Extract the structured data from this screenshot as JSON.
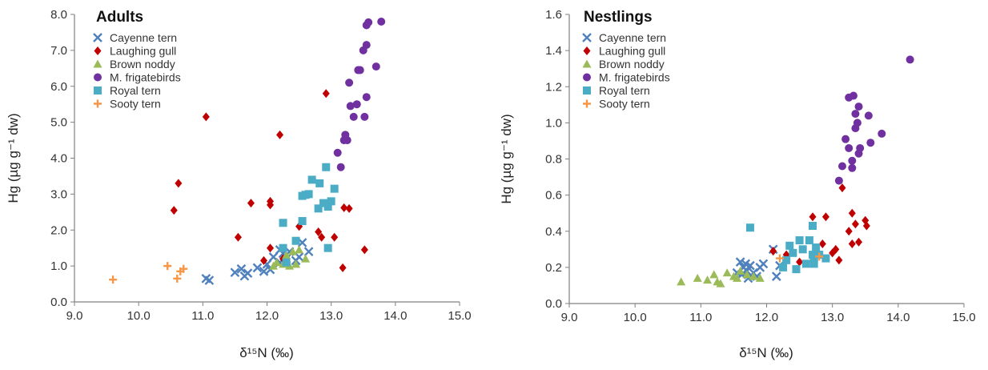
{
  "chart_data": [
    {
      "type": "scatter",
      "title": "Adults",
      "xlabel": "δ¹⁵N (‰)",
      "ylabel": "Hg (µg g⁻¹ dw)",
      "xlim": [
        9.0,
        15.0
      ],
      "ylim": [
        0.0,
        8.0
      ],
      "x_ticks": [
        "9.0",
        "10.0",
        "11.0",
        "12.0",
        "13.0",
        "14.0",
        "15.0"
      ],
      "y_ticks": [
        "0.0",
        "1.0",
        "2.0",
        "3.0",
        "4.0",
        "5.0",
        "6.0",
        "7.0",
        "8.0"
      ],
      "legend_position": "top-left",
      "grid": false,
      "series": [
        {
          "name": "Cayenne tern",
          "marker": "x",
          "color": "#4F81BD",
          "points": [
            [
              11.05,
              0.65
            ],
            [
              11.1,
              0.6
            ],
            [
              11.5,
              0.82
            ],
            [
              11.6,
              0.92
            ],
            [
              11.65,
              0.72
            ],
            [
              11.7,
              0.8
            ],
            [
              11.85,
              0.95
            ],
            [
              11.95,
              0.85
            ],
            [
              12.0,
              1.05
            ],
            [
              12.05,
              0.9
            ],
            [
              12.1,
              1.25
            ],
            [
              12.2,
              1.1
            ],
            [
              12.25,
              1.35
            ],
            [
              12.3,
              1.2
            ],
            [
              12.35,
              1.4
            ],
            [
              12.45,
              1.15
            ],
            [
              12.5,
              1.25
            ],
            [
              12.55,
              1.65
            ],
            [
              12.65,
              1.4
            ],
            [
              12.2,
              1.45
            ]
          ]
        },
        {
          "name": "Laughing gull",
          "marker": "diamond",
          "color": "#C00000",
          "points": [
            [
              10.55,
              2.55
            ],
            [
              10.62,
              3.3
            ],
            [
              11.05,
              5.15
            ],
            [
              11.55,
              1.8
            ],
            [
              11.75,
              2.75
            ],
            [
              11.95,
              1.15
            ],
            [
              12.05,
              2.8
            ],
            [
              12.05,
              2.7
            ],
            [
              12.05,
              1.5
            ],
            [
              12.2,
              4.65
            ],
            [
              12.25,
              1.2
            ],
            [
              12.5,
              2.1
            ],
            [
              12.8,
              1.95
            ],
            [
              12.85,
              1.8
            ],
            [
              12.92,
              5.8
            ],
            [
              13.05,
              1.8
            ],
            [
              13.2,
              2.62
            ],
            [
              13.28,
              2.6
            ],
            [
              13.18,
              0.95
            ],
            [
              13.52,
              1.45
            ]
          ]
        },
        {
          "name": "Brown noddy",
          "marker": "triangle",
          "color": "#9BBB59",
          "points": [
            [
              12.1,
              1.0
            ],
            [
              12.15,
              1.1
            ],
            [
              12.25,
              1.05
            ],
            [
              12.3,
              1.15
            ],
            [
              12.35,
              1.0
            ],
            [
              12.4,
              1.4
            ],
            [
              12.45,
              1.05
            ],
            [
              12.5,
              1.45
            ],
            [
              12.6,
              1.2
            ],
            [
              12.3,
              1.3
            ]
          ]
        },
        {
          "name": "M. frigatebirds",
          "marker": "circle",
          "color": "#7030A0",
          "points": [
            [
              13.1,
              4.15
            ],
            [
              13.15,
              3.75
            ],
            [
              13.2,
              4.5
            ],
            [
              13.22,
              4.65
            ],
            [
              13.25,
              4.5
            ],
            [
              13.28,
              6.1
            ],
            [
              13.3,
              5.45
            ],
            [
              13.35,
              5.15
            ],
            [
              13.4,
              5.5
            ],
            [
              13.42,
              6.45
            ],
            [
              13.45,
              6.45
            ],
            [
              13.5,
              7.0
            ],
            [
              13.52,
              5.15
            ],
            [
              13.55,
              7.15
            ],
            [
              13.55,
              7.7
            ],
            [
              13.58,
              7.78
            ],
            [
              13.55,
              5.7
            ],
            [
              13.7,
              6.55
            ],
            [
              13.78,
              7.8
            ]
          ]
        },
        {
          "name": "Royal tern",
          "marker": "square",
          "color": "#4BACC6",
          "points": [
            [
              12.25,
              2.2
            ],
            [
              12.25,
              1.5
            ],
            [
              12.3,
              1.1
            ],
            [
              12.45,
              1.7
            ],
            [
              12.55,
              2.95
            ],
            [
              12.55,
              2.25
            ],
            [
              12.65,
              3.0
            ],
            [
              12.7,
              3.4
            ],
            [
              12.8,
              2.6
            ],
            [
              12.82,
              3.3
            ],
            [
              12.88,
              2.75
            ],
            [
              12.92,
              3.75
            ],
            [
              12.95,
              2.65
            ],
            [
              12.95,
              1.5
            ],
            [
              13.0,
              2.8
            ],
            [
              13.05,
              3.15
            ],
            [
              12.6,
              2.98
            ]
          ]
        },
        {
          "name": "Sooty tern",
          "marker": "plus",
          "color": "#F79646",
          "points": [
            [
              9.6,
              0.62
            ],
            [
              10.45,
              1.0
            ],
            [
              10.6,
              0.65
            ],
            [
              10.65,
              0.85
            ],
            [
              10.7,
              0.92
            ]
          ]
        }
      ]
    },
    {
      "type": "scatter",
      "title": "Nestlings",
      "xlabel": "δ¹⁵N (‰)",
      "ylabel": "Hg (µg g⁻¹ dw)",
      "xlim": [
        9.0,
        15.0
      ],
      "ylim": [
        0.0,
        1.6
      ],
      "x_ticks": [
        "9.0",
        "10.0",
        "11.0",
        "12.0",
        "13.0",
        "14.0",
        "15.0"
      ],
      "y_ticks": [
        "0.0",
        "0.2",
        "0.4",
        "0.6",
        "0.8",
        "1.0",
        "1.2",
        "1.4",
        "1.6"
      ],
      "legend_position": "top-left",
      "grid": false,
      "series": [
        {
          "name": "Cayenne tern",
          "marker": "x",
          "color": "#4F81BD",
          "points": [
            [
              11.55,
              0.17
            ],
            [
              11.6,
              0.23
            ],
            [
              11.62,
              0.16
            ],
            [
              11.65,
              0.2
            ],
            [
              11.7,
              0.18
            ],
            [
              11.72,
              0.14
            ],
            [
              11.75,
              0.21
            ],
            [
              11.8,
              0.17
            ],
            [
              11.85,
              0.15
            ],
            [
              11.9,
              0.2
            ],
            [
              11.95,
              0.22
            ],
            [
              12.1,
              0.3
            ],
            [
              12.15,
              0.15
            ],
            [
              12.2,
              0.21
            ],
            [
              11.68,
              0.22
            ]
          ]
        },
        {
          "name": "Laughing gull",
          "marker": "diamond",
          "color": "#C00000",
          "points": [
            [
              12.1,
              0.29
            ],
            [
              12.3,
              0.27
            ],
            [
              12.5,
              0.23
            ],
            [
              12.7,
              0.48
            ],
            [
              12.75,
              0.28
            ],
            [
              12.85,
              0.33
            ],
            [
              12.9,
              0.48
            ],
            [
              13.0,
              0.28
            ],
            [
              13.05,
              0.3
            ],
            [
              13.1,
              0.24
            ],
            [
              13.15,
              0.64
            ],
            [
              13.25,
              0.4
            ],
            [
              13.3,
              0.5
            ],
            [
              13.3,
              0.33
            ],
            [
              13.35,
              0.44
            ],
            [
              13.4,
              0.34
            ],
            [
              13.5,
              0.46
            ],
            [
              13.52,
              0.43
            ]
          ]
        },
        {
          "name": "Brown noddy",
          "marker": "triangle",
          "color": "#9BBB59",
          "points": [
            [
              10.7,
              0.12
            ],
            [
              10.95,
              0.14
            ],
            [
              11.1,
              0.13
            ],
            [
              11.2,
              0.16
            ],
            [
              11.25,
              0.12
            ],
            [
              11.3,
              0.11
            ],
            [
              11.4,
              0.17
            ],
            [
              11.5,
              0.15
            ],
            [
              11.6,
              0.18
            ],
            [
              11.7,
              0.16
            ],
            [
              11.8,
              0.15
            ],
            [
              11.9,
              0.14
            ],
            [
              11.55,
              0.14
            ]
          ]
        },
        {
          "name": "M. frigatebirds",
          "marker": "circle",
          "color": "#7030A0",
          "points": [
            [
              13.1,
              0.68
            ],
            [
              13.15,
              0.76
            ],
            [
              13.2,
              0.91
            ],
            [
              13.25,
              1.14
            ],
            [
              13.25,
              0.86
            ],
            [
              13.3,
              0.79
            ],
            [
              13.3,
              0.75
            ],
            [
              13.32,
              1.15
            ],
            [
              13.35,
              1.05
            ],
            [
              13.35,
              0.97
            ],
            [
              13.38,
              1.0
            ],
            [
              13.4,
              1.09
            ],
            [
              13.4,
              0.83
            ],
            [
              13.42,
              0.86
            ],
            [
              13.55,
              1.04
            ],
            [
              13.58,
              0.89
            ],
            [
              13.75,
              0.94
            ],
            [
              14.18,
              1.35
            ]
          ]
        },
        {
          "name": "Royal tern",
          "marker": "square",
          "color": "#4BACC6",
          "points": [
            [
              11.75,
              0.42
            ],
            [
              12.25,
              0.2
            ],
            [
              12.3,
              0.24
            ],
            [
              12.35,
              0.32
            ],
            [
              12.4,
              0.28
            ],
            [
              12.45,
              0.19
            ],
            [
              12.5,
              0.35
            ],
            [
              12.55,
              0.3
            ],
            [
              12.6,
              0.22
            ],
            [
              12.65,
              0.35
            ],
            [
              12.7,
              0.43
            ],
            [
              12.7,
              0.27
            ],
            [
              12.72,
              0.25
            ],
            [
              12.75,
              0.31
            ],
            [
              12.8,
              0.27
            ],
            [
              12.9,
              0.25
            ],
            [
              12.72,
              0.22
            ]
          ]
        },
        {
          "name": "Sooty tern",
          "marker": "plus",
          "color": "#F79646",
          "points": [
            [
              12.2,
              0.25
            ],
            [
              12.8,
              0.26
            ]
          ]
        }
      ]
    }
  ]
}
